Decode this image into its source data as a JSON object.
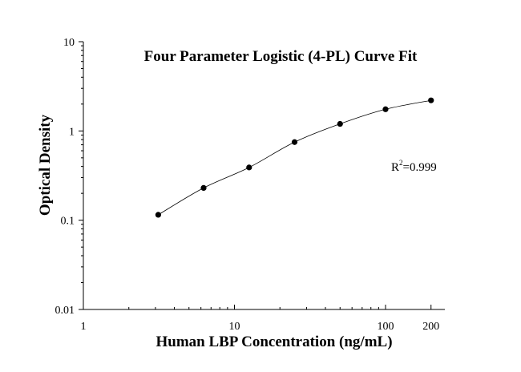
{
  "chart_data": {
    "type": "scatter",
    "title": "Four Parameter Logistic (4-PL) Curve Fit",
    "xlabel": "Human LBP Concentration (ng/mL)",
    "ylabel": "Optical Density",
    "x_scale": "log",
    "y_scale": "log",
    "xlim": [
      1,
      200
    ],
    "ylim": [
      0.01,
      10
    ],
    "x_ticks": [
      {
        "value": 1,
        "label": "1"
      },
      {
        "value": 10,
        "label": "10"
      },
      {
        "value": 100,
        "label": "100"
      },
      {
        "value": 200,
        "label": "200"
      }
    ],
    "y_ticks": [
      {
        "value": 0.01,
        "label": "0.01"
      },
      {
        "value": 0.1,
        "label": "0.1"
      },
      {
        "value": 1,
        "label": "1"
      },
      {
        "value": 10,
        "label": "10"
      }
    ],
    "grid": false,
    "annotation": {
      "prefix": "R",
      "superscript": "2",
      "suffix": "=0.999"
    },
    "series": [
      {
        "x": [
          3.13,
          6.25,
          12.5,
          25,
          50,
          100,
          200
        ],
        "y": [
          0.115,
          0.23,
          0.39,
          0.75,
          1.2,
          1.75,
          2.2
        ],
        "marker": "circle",
        "fit": "4-PL",
        "color": "#000000"
      }
    ]
  }
}
